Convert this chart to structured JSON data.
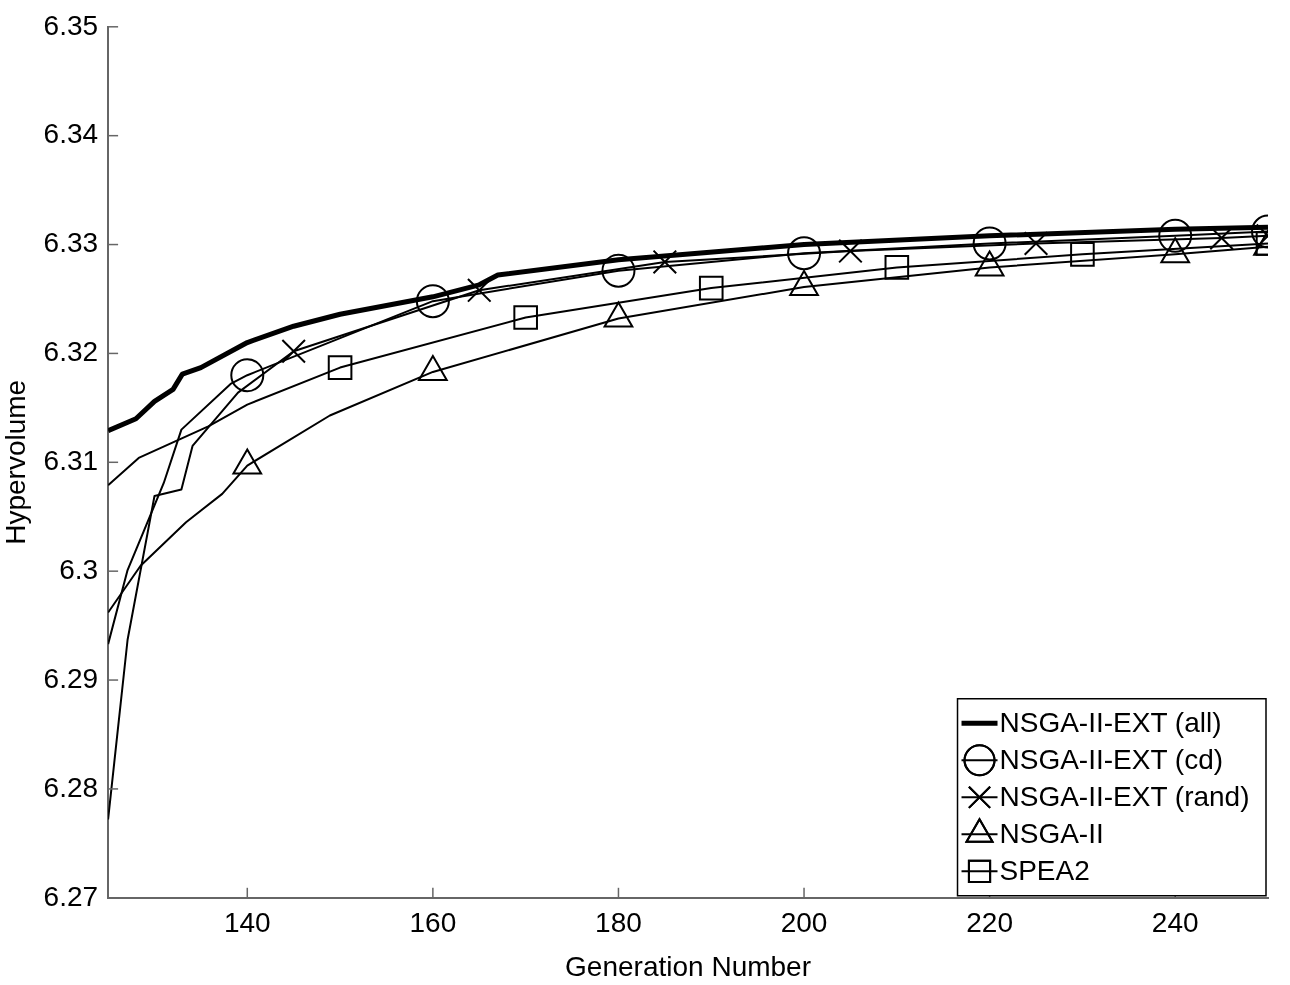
{
  "chart_data": {
    "type": "line",
    "xlabel": "Generation Number",
    "ylabel": "Hypervolume",
    "xlim": [
      125,
      250
    ],
    "ylim": [
      6.27,
      6.35
    ],
    "xticks": [
      140,
      160,
      180,
      200,
      220,
      240
    ],
    "yticks": [
      6.27,
      6.28,
      6.29,
      6.3,
      6.31,
      6.32,
      6.33,
      6.34,
      6.35
    ],
    "grid": false,
    "legend": "bottom right",
    "series": [
      {
        "name": "NSGA-II-EXT (all)",
        "color": "#000000",
        "marker": "none",
        "x": [
          125,
          128,
          130,
          132,
          133,
          135,
          140,
          145,
          150,
          160,
          165,
          167,
          180,
          200,
          220,
          240,
          250
        ],
        "values": [
          6.3129,
          6.314,
          6.3156,
          6.3167,
          6.3181,
          6.3187,
          6.321,
          6.3225,
          6.3236,
          6.3252,
          6.3263,
          6.3272,
          6.3286,
          6.33,
          6.3308,
          6.3314,
          6.3316
        ]
      },
      {
        "name": "NSGA-II-EXT (cd)",
        "color": "#000000",
        "marker": "circle",
        "x": [
          125,
          127.1,
          131,
          132.9,
          138.2,
          140,
          160,
          180,
          200,
          220,
          240,
          250
        ],
        "values": [
          6.2933,
          6.3001,
          6.3081,
          6.313,
          6.3172,
          6.318,
          6.3248,
          6.3276,
          6.3292,
          6.3301,
          6.3308,
          6.3312
        ]
      },
      {
        "name": "NSGA-II-EXT (rand)",
        "color": "#000000",
        "marker": "cross",
        "x": [
          125,
          127.1,
          130,
          132.9,
          134.1,
          139,
          145,
          165,
          185,
          205,
          225,
          245,
          250
        ],
        "values": [
          6.2772,
          6.2937,
          6.3069,
          6.3075,
          6.3115,
          6.3164,
          6.3202,
          6.3258,
          6.3284,
          6.3294,
          6.3301,
          6.3306,
          6.3308
        ]
      },
      {
        "name": "NSGA-II",
        "color": "#000000",
        "marker": "triangle",
        "x": [
          125,
          128.5,
          133.4,
          137.3,
          140,
          148.9,
          160,
          180,
          200,
          220,
          240,
          250
        ],
        "values": [
          6.2962,
          6.3005,
          6.3045,
          6.3071,
          6.3097,
          6.3143,
          6.3183,
          6.3232,
          6.3261,
          6.3279,
          6.3291,
          6.3298
        ]
      },
      {
        "name": "SPEA2",
        "color": "#000000",
        "marker": "square",
        "x": [
          125,
          128.3,
          135.8,
          140,
          150,
          170,
          190,
          210,
          230,
          250
        ],
        "values": [
          6.3079,
          6.3104,
          6.3133,
          6.3153,
          6.3187,
          6.3233,
          6.326,
          6.3279,
          6.3291,
          6.3301
        ]
      }
    ]
  }
}
